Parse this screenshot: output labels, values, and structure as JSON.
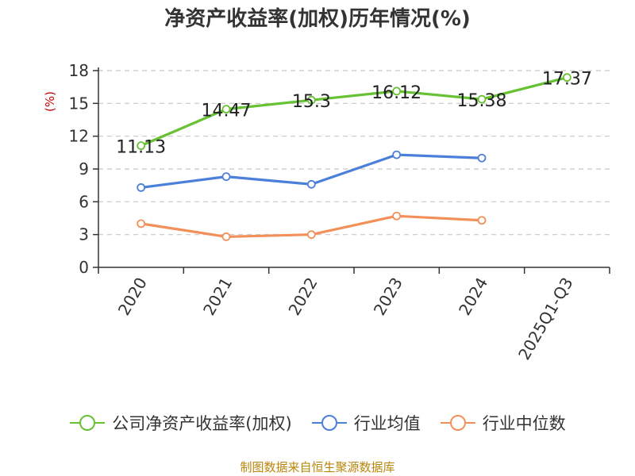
{
  "chart_data": {
    "type": "line",
    "title": "净资产收益率(加权)历年情况(%)",
    "ylabel": "(%)",
    "xlabel": "",
    "categories": [
      "2020",
      "2021",
      "2022",
      "2023",
      "2024",
      "2025Q1-Q3"
    ],
    "ylim": [
      0,
      18
    ],
    "yticks": [
      0,
      3,
      6,
      9,
      12,
      15,
      18
    ],
    "grid": true,
    "legend_position": "bottom",
    "series": [
      {
        "name": "公司净资产收益率(加权)",
        "color": "#66c133",
        "values": [
          11.13,
          14.47,
          15.3,
          16.12,
          15.38,
          17.37
        ],
        "labels": [
          "11.13",
          "14.47",
          "15.3",
          "16.12",
          "15.38",
          "17.37"
        ]
      },
      {
        "name": "行业均值",
        "color": "#4b7fd9",
        "values": [
          7.3,
          8.3,
          7.6,
          10.3,
          10.0,
          null
        ]
      },
      {
        "name": "行业中位数",
        "color": "#f3905a",
        "values": [
          4.0,
          2.8,
          3.0,
          4.7,
          4.3,
          null
        ]
      }
    ]
  },
  "source_text": "制图数据来自恒生聚源数据库"
}
